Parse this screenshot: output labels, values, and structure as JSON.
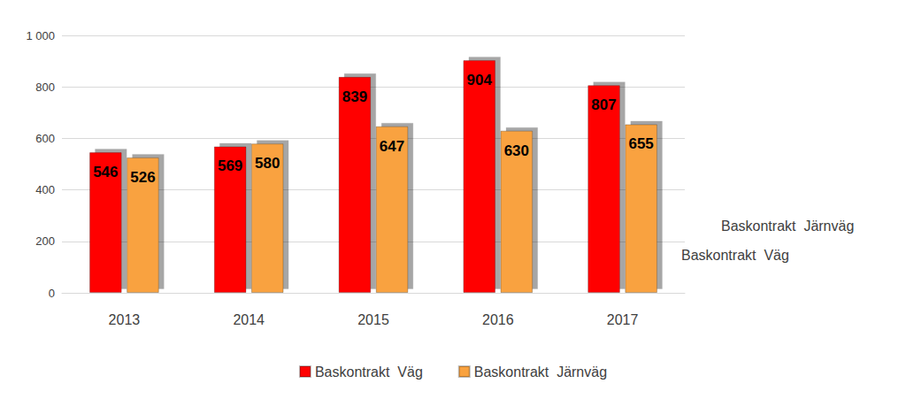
{
  "chart_data": {
    "type": "bar",
    "categories": [
      "2013",
      "2014",
      "2015",
      "2016",
      "2017"
    ],
    "series": [
      {
        "name": "Baskontrakt  Väg",
        "color": "#ff0000",
        "values": [
          546,
          569,
          839,
          904,
          807
        ]
      },
      {
        "name": "Baskontrakt  Järnväg",
        "color": "#f9a23f",
        "values": [
          526,
          580,
          647,
          630,
          655
        ]
      }
    ],
    "ylim": [
      0,
      1000
    ],
    "yticks": [
      0,
      200,
      400,
      600,
      800,
      {
        "value": 1000,
        "label": "1 000"
      }
    ],
    "grid": true,
    "legend": "bottom",
    "data_labels": true
  }
}
